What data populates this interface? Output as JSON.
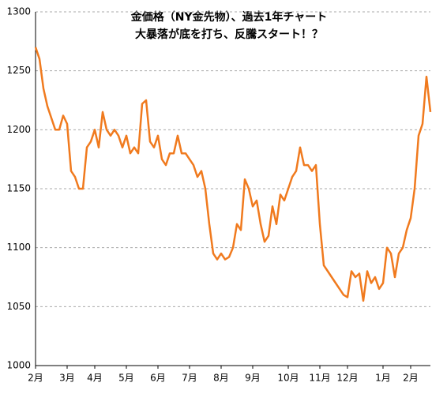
{
  "chart_data": {
    "type": "line",
    "title": "金価格（NY金先物）、過去1年チャート",
    "subtitle": "大暴落が底を打ち、反騰スタート！？",
    "categories": [
      "2月",
      null,
      null,
      null,
      null,
      null,
      null,
      null,
      "3月",
      null,
      null,
      null,
      null,
      null,
      null,
      "4月",
      null,
      null,
      null,
      null,
      null,
      null,
      null,
      "5月",
      null,
      null,
      null,
      null,
      null,
      null,
      null,
      "6月",
      null,
      null,
      null,
      null,
      null,
      null,
      null,
      "7月",
      null,
      null,
      null,
      null,
      null,
      null,
      null,
      "8月",
      null,
      null,
      null,
      null,
      null,
      null,
      null,
      "9月",
      null,
      null,
      null,
      null,
      null,
      null,
      null,
      null,
      "10月",
      null,
      null,
      null,
      null,
      null,
      null,
      null,
      "11月",
      null,
      null,
      null,
      null,
      null,
      null,
      "12月",
      null,
      null,
      null,
      null,
      null,
      null,
      null,
      null,
      "1月",
      null,
      null,
      null,
      null,
      null,
      null,
      "2月",
      null,
      null,
      null,
      null,
      null
    ],
    "values": [
      1270,
      1260,
      1235,
      1220,
      1210,
      1200,
      1200,
      1212,
      1205,
      1165,
      1160,
      1150,
      1150,
      1185,
      1190,
      1200,
      1185,
      1215,
      1200,
      1195,
      1200,
      1195,
      1185,
      1195,
      1180,
      1185,
      1180,
      1222,
      1225,
      1190,
      1185,
      1195,
      1175,
      1170,
      1180,
      1180,
      1195,
      1180,
      1180,
      1175,
      1170,
      1160,
      1165,
      1150,
      1120,
      1095,
      1090,
      1095,
      1090,
      1092,
      1100,
      1120,
      1115,
      1158,
      1150,
      1135,
      1140,
      1120,
      1105,
      1110,
      1135,
      1120,
      1145,
      1140,
      1150,
      1160,
      1165,
      1185,
      1170,
      1170,
      1165,
      1170,
      1120,
      1085,
      1080,
      1075,
      1070,
      1065,
      1060,
      1058,
      1080,
      1075,
      1078,
      1055,
      1080,
      1070,
      1075,
      1065,
      1070,
      1100,
      1095,
      1075,
      1095,
      1100,
      1115,
      1125,
      1150,
      1195,
      1205,
      1245,
      1215
    ],
    "color": "#f07a1e",
    "ylim": [
      1000,
      1300
    ],
    "yticks": [
      1000,
      1050,
      1100,
      1150,
      1200,
      1250,
      1300
    ],
    "grid": true
  }
}
